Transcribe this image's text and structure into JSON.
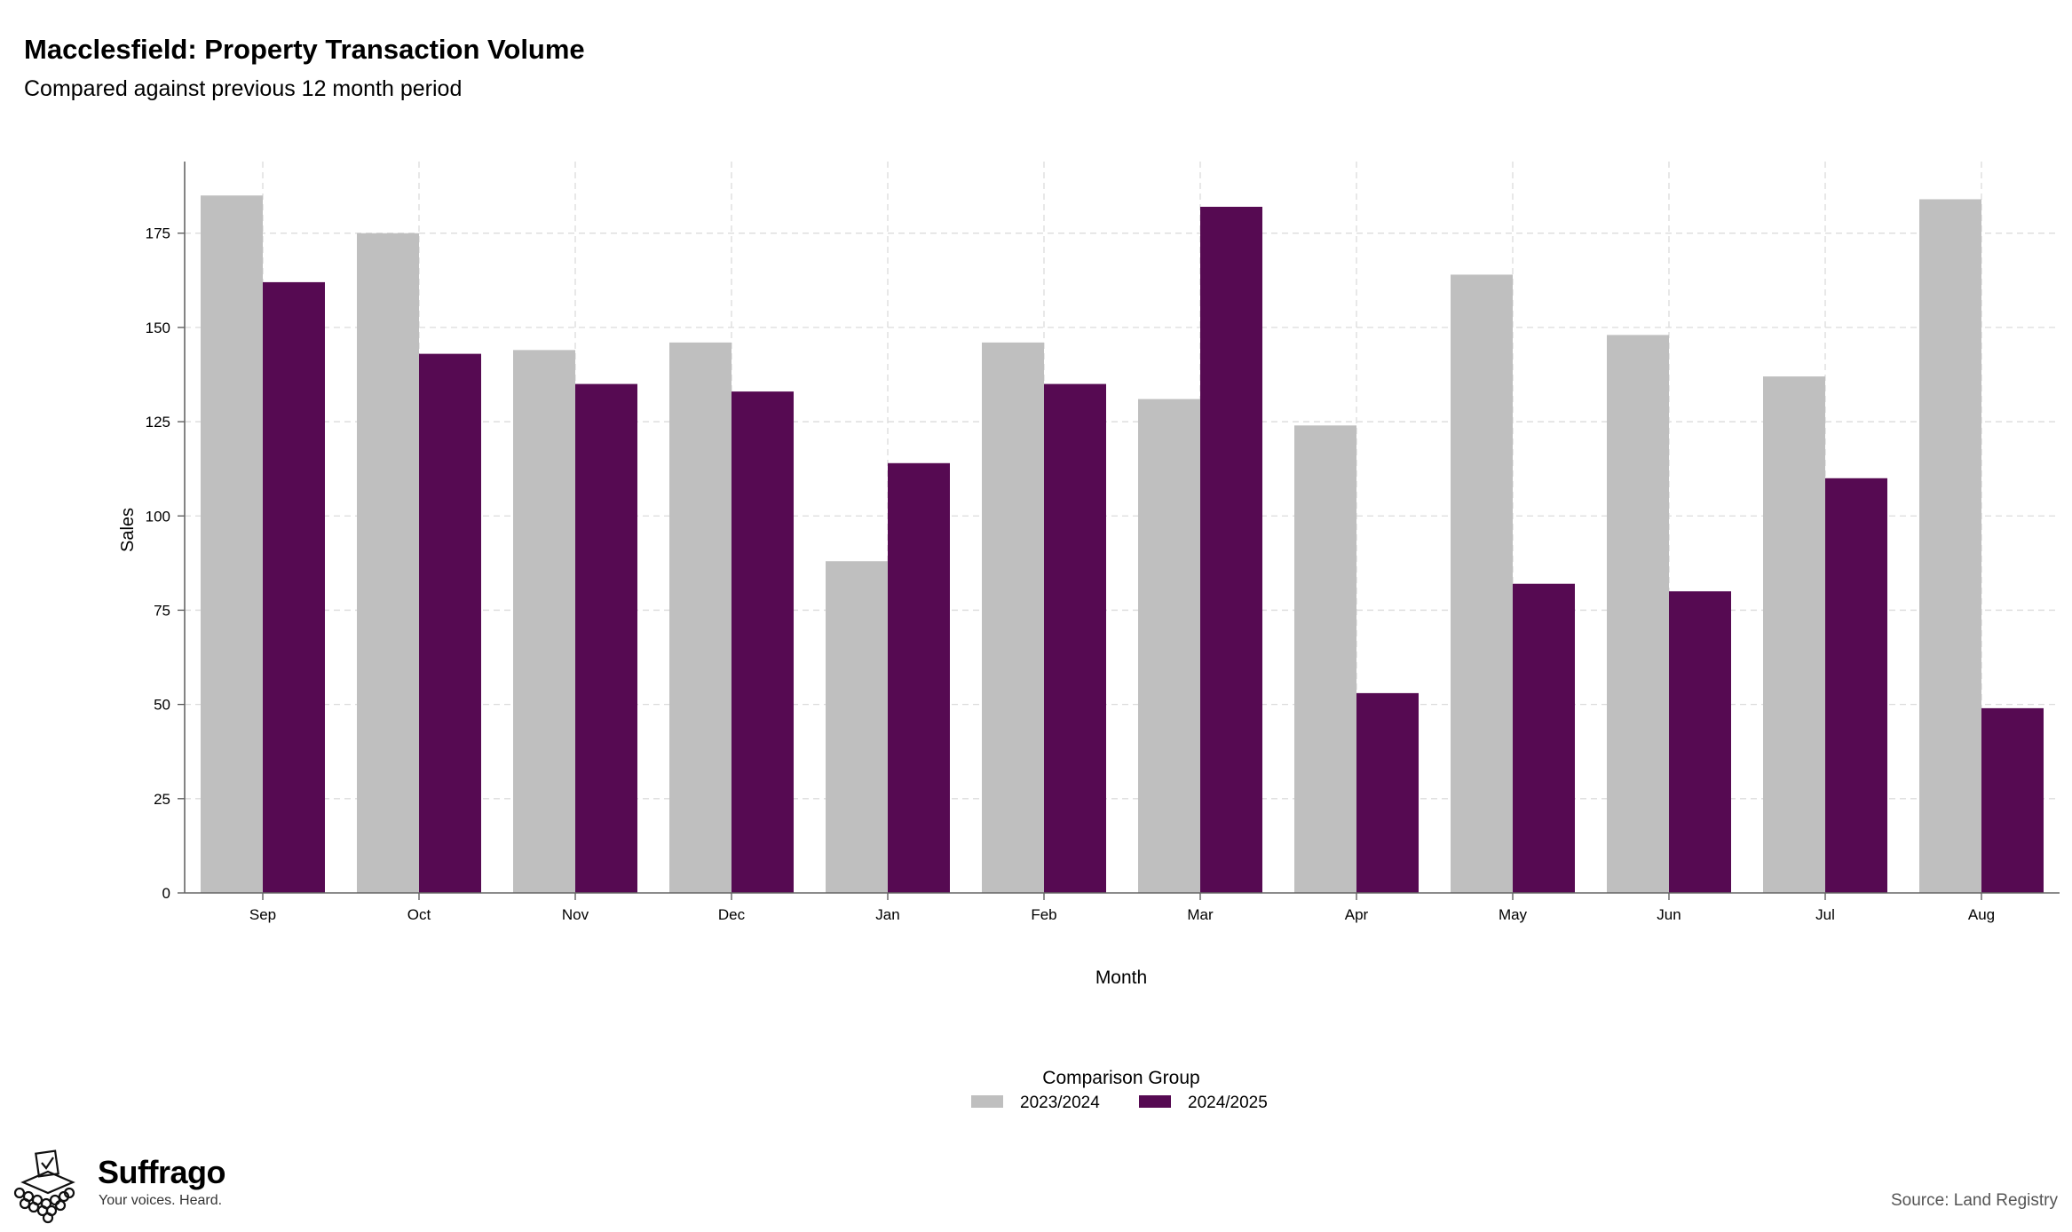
{
  "header": {
    "title": "Macclesfield: Property Transaction Volume",
    "subtitle": "Compared against previous 12 month period"
  },
  "chart_data": {
    "type": "bar",
    "categories": [
      "Sep",
      "Oct",
      "Nov",
      "Dec",
      "Jan",
      "Feb",
      "Mar",
      "Apr",
      "May",
      "Jun",
      "Jul",
      "Aug"
    ],
    "series": [
      {
        "name": "2023/2024",
        "color": "#bfbfbf",
        "values": [
          185,
          175,
          144,
          146,
          88,
          146,
          131,
          124,
          164,
          148,
          137,
          184
        ]
      },
      {
        "name": "2024/2025",
        "color": "#560a52",
        "values": [
          162,
          143,
          135,
          133,
          114,
          135,
          182,
          53,
          82,
          80,
          110,
          49
        ]
      }
    ],
    "xlabel": "Month",
    "ylabel": "Sales",
    "ylim": [
      0,
      194
    ],
    "yticks": [
      0,
      25,
      50,
      75,
      100,
      125,
      150,
      175
    ],
    "grid": true,
    "legend": {
      "title": "Comparison Group",
      "position": "bottom"
    }
  },
  "branding": {
    "logo_name": "Suffrago",
    "tagline": "Your voices. Heard.",
    "logo_icon": "ballot-box-icon"
  },
  "footer": {
    "source": "Source: Land Registry"
  }
}
